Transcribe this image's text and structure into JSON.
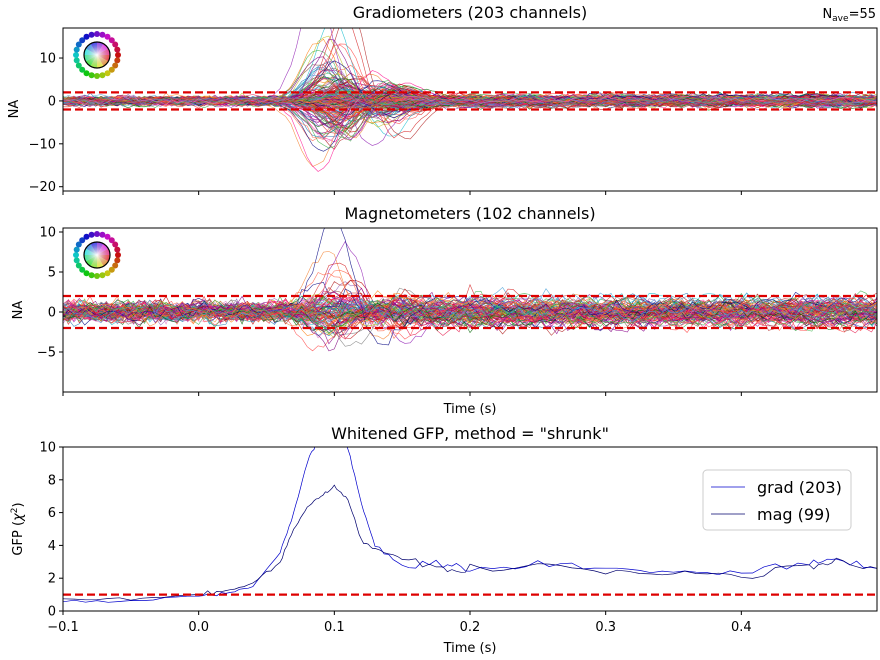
{
  "corner_label": {
    "base": "N",
    "sub": "ave",
    "rest": "=55"
  },
  "chart_data": [
    {
      "type": "line",
      "title": "Gradiometers (203 channels)",
      "xlabel": "",
      "ylabel": "NA",
      "xlim": [
        -0.1,
        0.5
      ],
      "ylim": [
        -21,
        17
      ],
      "xticks": [
        -0.1,
        0.0,
        0.1,
        0.2,
        0.3,
        0.4
      ],
      "yticks": [
        -20,
        -10,
        0,
        10
      ],
      "ytick_labels": [
        "−20",
        "−10",
        "0",
        "10"
      ],
      "n_channels": 203,
      "noise_sd": 1.0,
      "bounds": [
        -2,
        2
      ],
      "note": "Butterfly plot of 203 gradiometer channels; evoked peak around 0.1 s with extremes near +15 and -19.",
      "series_legend_icon": "color-wheel-icon"
    },
    {
      "type": "line",
      "title": "Magnetometers (102 channels)",
      "xlabel": "Time (s)",
      "ylabel": "NA",
      "xlim": [
        -0.1,
        0.5
      ],
      "ylim": [
        -10,
        10.5
      ],
      "xticks": [
        -0.1,
        0.0,
        0.1,
        0.2,
        0.3,
        0.4
      ],
      "yticks": [
        -5,
        0,
        5,
        10
      ],
      "ytick_labels": [
        "−5",
        "0",
        "5",
        "10"
      ],
      "n_channels": 102,
      "noise_sd": 1.0,
      "bounds": [
        -2,
        2
      ],
      "note": "Butterfly plot of 102 magnetometer channels; peak around 0.1 s reaching about +9.5 and -8.8.",
      "series_legend_icon": "color-wheel-icon"
    },
    {
      "type": "line",
      "title": "Whitened GFP, method = \"shrunk\"",
      "xlabel": "Time (s)",
      "ylabel": "GFP (χ²)",
      "xlim": [
        -0.1,
        0.5
      ],
      "ylim": [
        0,
        10
      ],
      "xticks": [
        -0.1,
        0.0,
        0.1,
        0.2,
        0.3,
        0.4
      ],
      "xtick_labels": [
        "−0.1",
        "0.0",
        "0.1",
        "0.2",
        "0.3",
        "0.4"
      ],
      "yticks": [
        0,
        2,
        4,
        6,
        8,
        10
      ],
      "reference_line": 1,
      "legend_position": "top-right",
      "series": [
        {
          "name": "grad (203)",
          "color": "#0000cc",
          "x": [
            -0.1,
            -0.05,
            0.0,
            0.02,
            0.04,
            0.06,
            0.07,
            0.08,
            0.09,
            0.1,
            0.11,
            0.12,
            0.13,
            0.15,
            0.18,
            0.2,
            0.25,
            0.3,
            0.35,
            0.4,
            0.45,
            0.47,
            0.5
          ],
          "values": [
            0.6,
            0.6,
            0.9,
            1.1,
            1.5,
            3.5,
            6.0,
            9.0,
            11.0,
            11.0,
            10.0,
            6.5,
            4.0,
            2.8,
            2.9,
            2.5,
            2.9,
            2.6,
            2.4,
            2.3,
            2.9,
            3.2,
            2.6
          ]
        },
        {
          "name": "mag (99)",
          "color": "#00006e",
          "x": [
            -0.1,
            -0.05,
            0.0,
            0.02,
            0.04,
            0.06,
            0.07,
            0.08,
            0.09,
            0.1,
            0.11,
            0.12,
            0.13,
            0.15,
            0.18,
            0.2,
            0.25,
            0.3,
            0.35,
            0.4,
            0.45,
            0.47,
            0.5
          ],
          "values": [
            0.7,
            0.7,
            1.0,
            1.2,
            1.7,
            3.0,
            5.0,
            6.3,
            7.0,
            7.6,
            6.8,
            4.3,
            3.8,
            3.2,
            2.6,
            2.4,
            2.8,
            2.5,
            2.3,
            2.1,
            2.8,
            3.0,
            2.6
          ]
        }
      ]
    }
  ],
  "palette": {
    "trace_colors": [
      "#e6194b",
      "#f58231",
      "#911eb4",
      "#ff4444",
      "#46a0d8",
      "#3cb44b",
      "#d62728",
      "#9467bd",
      "#8c564b",
      "#e377c2",
      "#7f7f7f",
      "#bcbd22",
      "#17becf",
      "#c00000",
      "#ff7f0e",
      "#1f77b4",
      "#2ca02c",
      "#800080",
      "#ff1493",
      "#006400",
      "#ff6347",
      "#000080",
      "#b22222",
      "#8b008b"
    ],
    "bound_color": "#dd0000",
    "axis_color": "#000000"
  }
}
